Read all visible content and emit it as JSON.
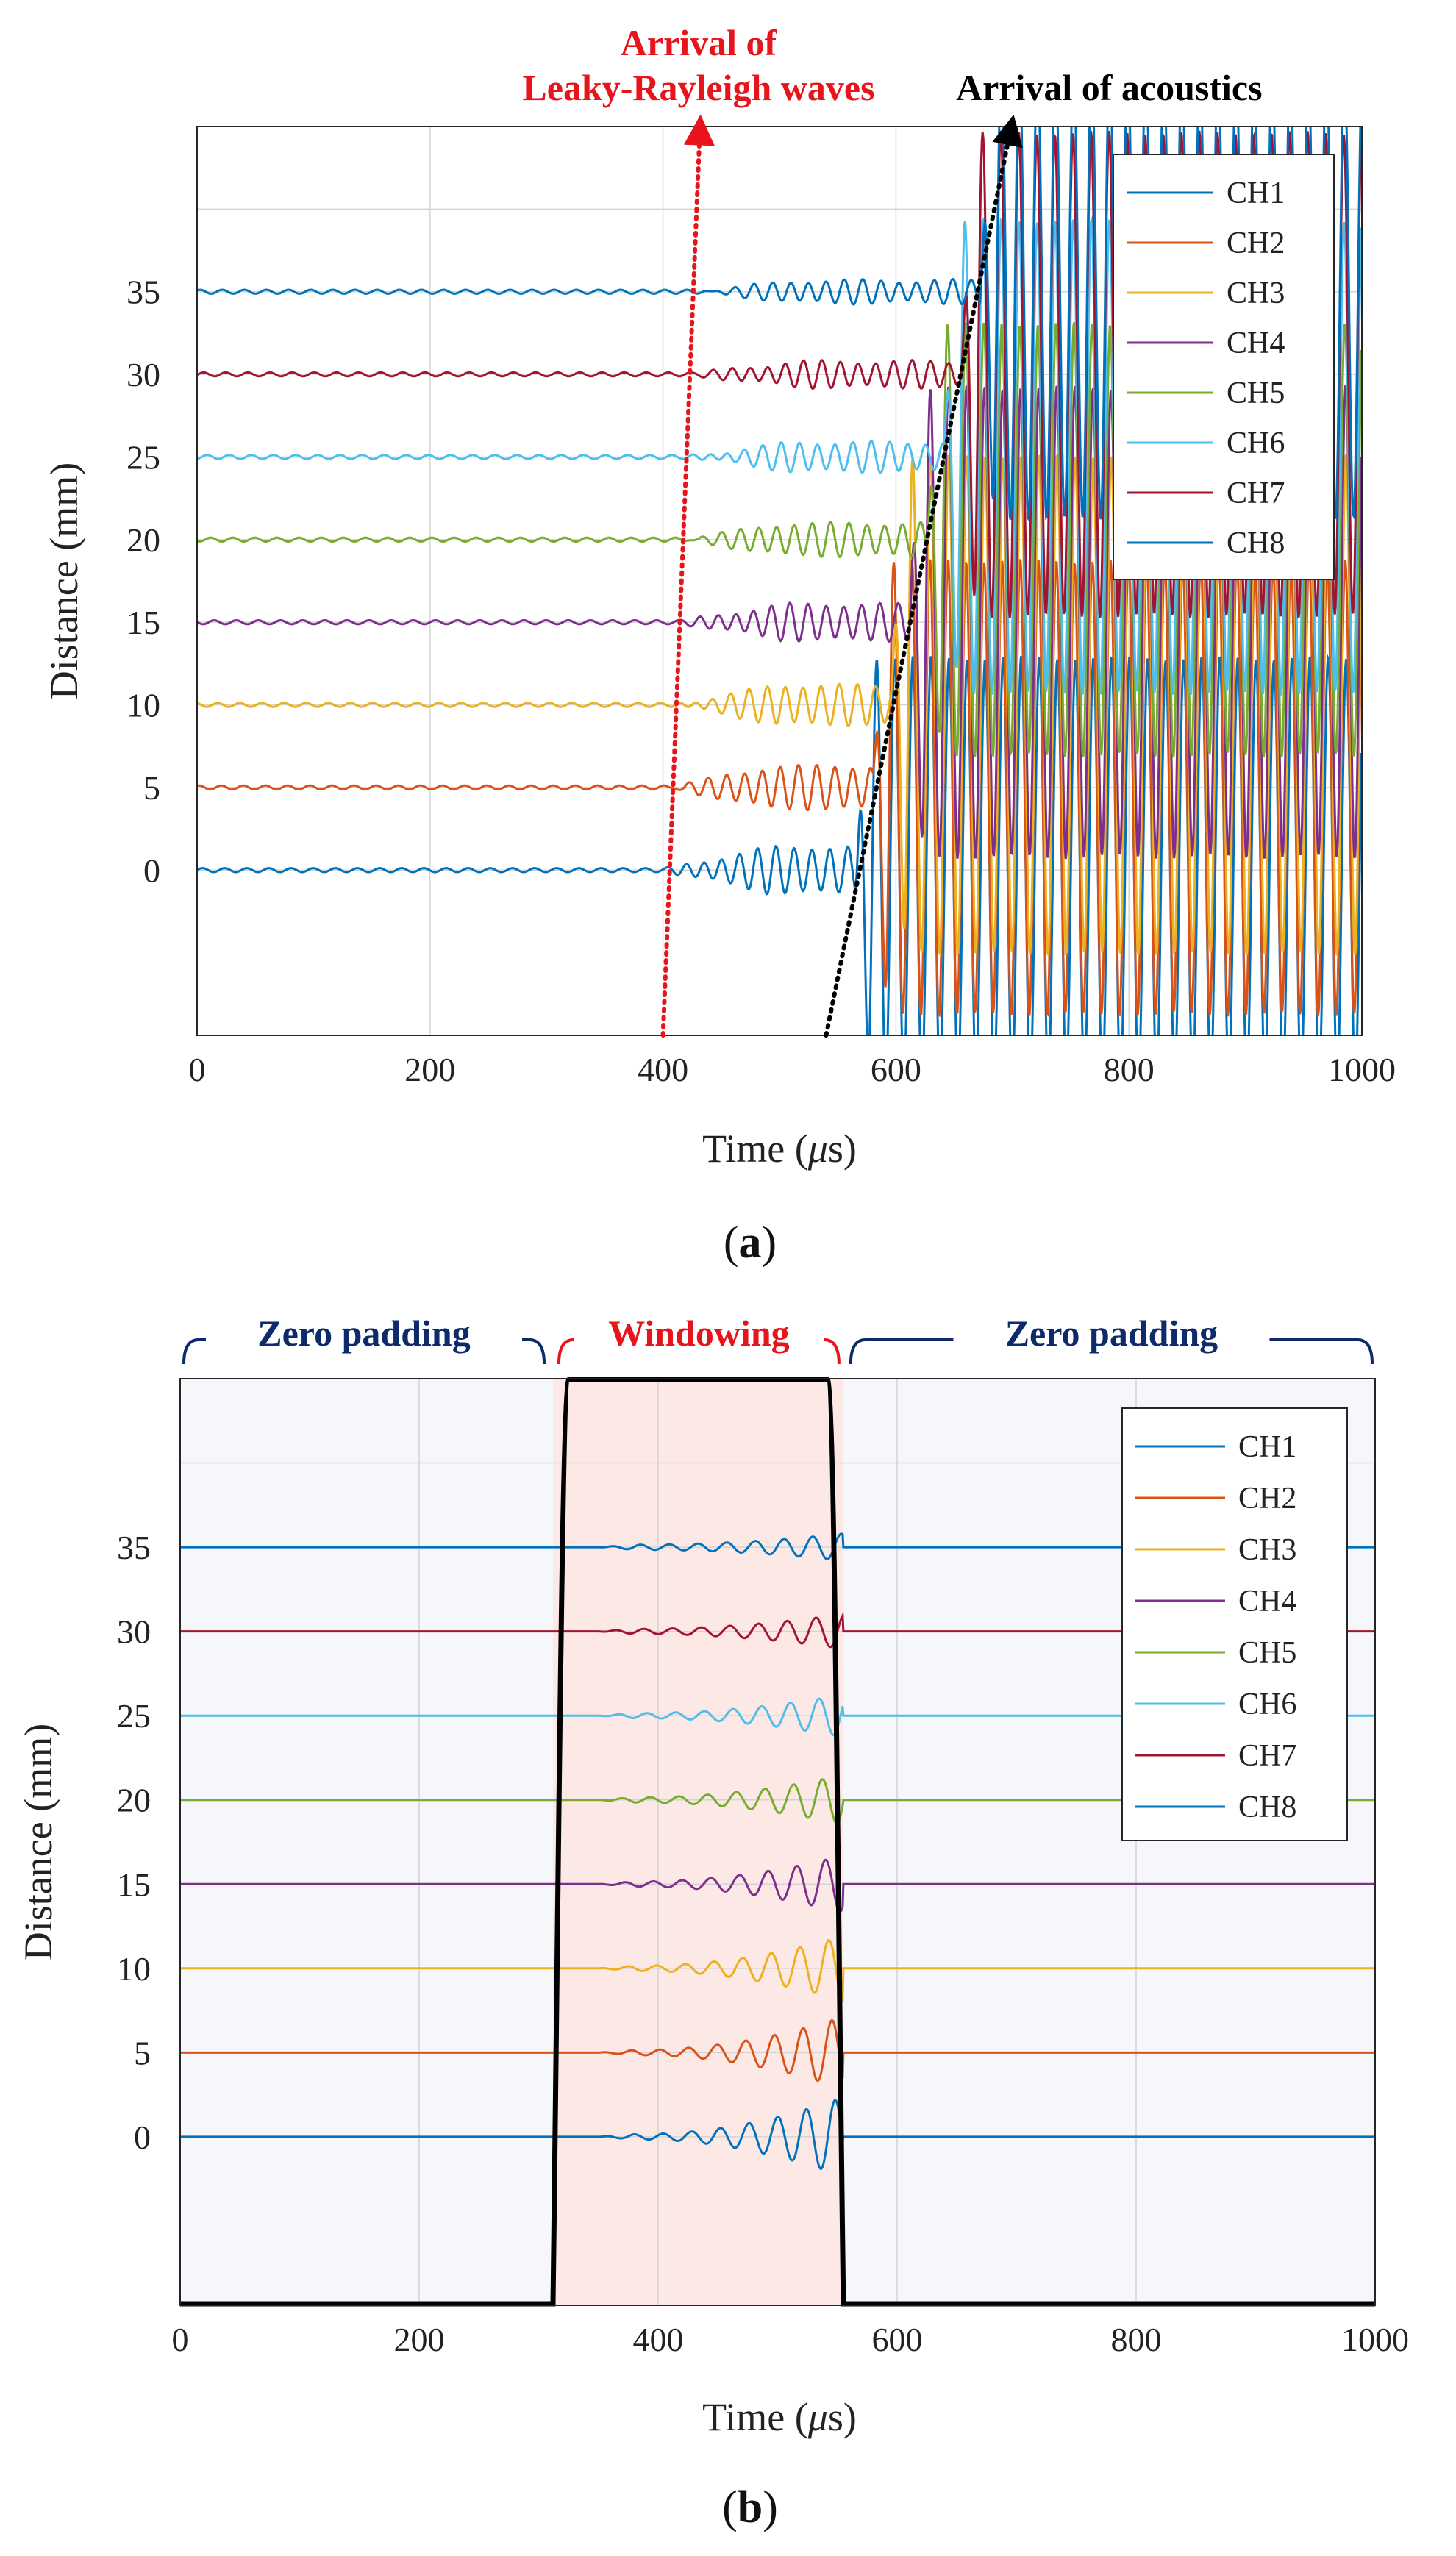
{
  "chart_data": [
    {
      "panel": "a",
      "type": "line",
      "xlabel_main": "Time (",
      "xlabel_mu": "μ",
      "xlabel_unit": "s)",
      "ylabel": "Distance (mm)",
      "xlim": [
        0,
        1000
      ],
      "xticks": [
        "0",
        "200",
        "400",
        "600",
        "800",
        "1000"
      ],
      "yticks": [
        "0",
        "5",
        "10",
        "15",
        "20",
        "25",
        "30",
        "35"
      ],
      "grid": true,
      "legend_position": "top-right",
      "series": [
        {
          "name": "CH1",
          "offset_mm": 0,
          "color": "#0072BD",
          "echo_start_us": 400,
          "acoustic_start_us": 565
        },
        {
          "name": "CH2",
          "offset_mm": 5,
          "color": "#D95319",
          "echo_start_us": 404,
          "acoustic_start_us": 580
        },
        {
          "name": "CH3",
          "offset_mm": 10,
          "color": "#EDB120",
          "echo_start_us": 408,
          "acoustic_start_us": 596
        },
        {
          "name": "CH4",
          "offset_mm": 15,
          "color": "#7E2F8E",
          "echo_start_us": 412,
          "acoustic_start_us": 611
        },
        {
          "name": "CH5",
          "offset_mm": 20,
          "color": "#77AC30",
          "echo_start_us": 416,
          "acoustic_start_us": 626
        },
        {
          "name": "CH6",
          "offset_mm": 25,
          "color": "#4DBEEE",
          "echo_start_us": 420,
          "acoustic_start_us": 641
        },
        {
          "name": "CH7",
          "offset_mm": 30,
          "color": "#A2142F",
          "echo_start_us": 424,
          "acoustic_start_us": 656
        },
        {
          "name": "CH8",
          "offset_mm": 35,
          "color": "#0072BD",
          "echo_start_us": 428,
          "acoustic_start_us": 672
        }
      ],
      "annotations": {
        "leaky_line_1": "Arrival of",
        "leaky_line_2": "Leaky-Rayleigh waves",
        "acoustic": "Arrival of acoustics"
      },
      "leaky_arrow": {
        "from": [
          400,
          -10
        ],
        "to": [
          432,
          45
        ]
      },
      "acoustic_arrow": {
        "from": [
          540,
          -10
        ],
        "to": [
          700,
          45
        ]
      },
      "label_open": "(",
      "label_letter": "a",
      "label_close": ")"
    },
    {
      "panel": "b",
      "type": "line",
      "xlabel_main": "Time (",
      "xlabel_mu": "μ",
      "xlabel_unit": "s)",
      "ylabel": "Distance (mm)",
      "xlim": [
        0,
        1000
      ],
      "xticks": [
        "0",
        "200",
        "400",
        "600",
        "800",
        "1000"
      ],
      "yticks": [
        "0",
        "5",
        "10",
        "15",
        "20",
        "25",
        "30",
        "35"
      ],
      "grid": true,
      "legend_position": "top-right",
      "series": [
        {
          "name": "CH1",
          "offset_mm": 0,
          "color": "#0072BD"
        },
        {
          "name": "CH2",
          "offset_mm": 5,
          "color": "#D95319"
        },
        {
          "name": "CH3",
          "offset_mm": 10,
          "color": "#EDB120"
        },
        {
          "name": "CH4",
          "offset_mm": 15,
          "color": "#7E2F8E"
        },
        {
          "name": "CH5",
          "offset_mm": 20,
          "color": "#77AC30"
        },
        {
          "name": "CH6",
          "offset_mm": 25,
          "color": "#4DBEEE"
        },
        {
          "name": "CH7",
          "offset_mm": 30,
          "color": "#A2142F"
        },
        {
          "name": "CH8",
          "offset_mm": 35,
          "color": "#0072BD"
        }
      ],
      "window_start_us": 312,
      "window_end_us": 555,
      "regions": {
        "left": "Zero padding",
        "middle": "Windowing",
        "right": "Zero padding"
      },
      "label_open": "(",
      "label_letter": "b",
      "label_close": ")"
    }
  ]
}
